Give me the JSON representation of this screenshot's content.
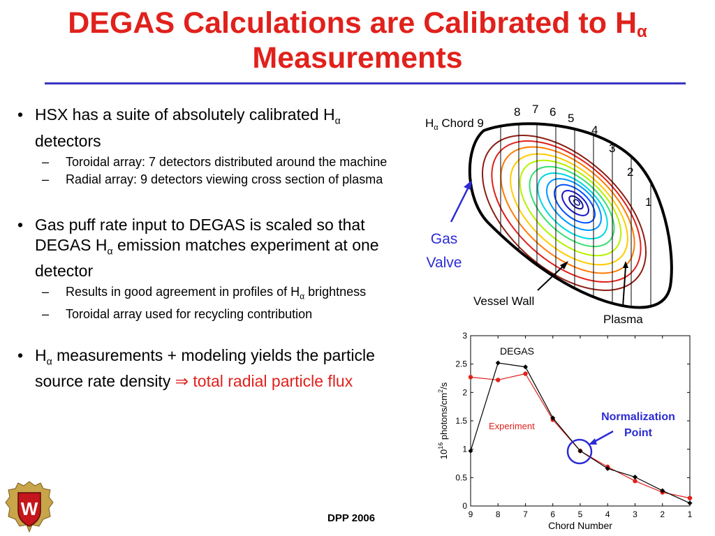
{
  "slide": {
    "title_line1": "DEGAS Calculations are Calibrated to H",
    "title_sub": "α",
    "title_line2": "Measurements",
    "footer": "DPP 2006"
  },
  "bullets": [
    {
      "pre": "HSX has a suite of absolutely calibrated H",
      "sub": "α",
      "post": " detectors",
      "subitems": [
        "Toroidal array: 7 detectors distributed around the machine",
        "Radial array: 9 detectors viewing cross section of plasma"
      ]
    },
    {
      "pre": "Gas puff rate input to DEGAS is scaled so that DEGAS  H",
      "sub": "α",
      "post": " emission matches experiment at one detector",
      "subitems_rich": [
        {
          "pre": "Results in good agreement in profiles of H",
          "sub": "α",
          "post": " brightness"
        }
      ],
      "subitems": [
        "Toroidal array used for recycling contribution"
      ]
    },
    {
      "pre": "H",
      "sub": "α",
      "post": " measurements + modeling yields the particle source rate density ",
      "arrow": "⇒",
      "red": " total radial particle flux"
    }
  ],
  "diagram": {
    "chord_label_pre": "H",
    "chord_label_sub": "α",
    "chord_label_post": " Chord 9",
    "chord_numbers": [
      "8",
      "7",
      "6",
      "5",
      "4",
      "3",
      "2",
      "1"
    ],
    "gas_valve_line1": "Gas",
    "gas_valve_line2": "Valve",
    "vessel_wall": "Vessel Wall",
    "plasma": "Plasma"
  },
  "chart_data": {
    "type": "line",
    "x": [
      9,
      8,
      7,
      6,
      5,
      4,
      3,
      2,
      1
    ],
    "x_ticks": [
      "9",
      "8",
      "7",
      "6",
      "5",
      "4",
      "3",
      "2",
      "1"
    ],
    "y_ticks": [
      "0",
      "0.5",
      "1",
      "1.5",
      "2",
      "2.5",
      "3"
    ],
    "xlabel": "Chord Number",
    "ylabel": "10^16 photons/cm^2/s",
    "ylim": [
      0,
      3
    ],
    "series": [
      {
        "name": "DEGAS",
        "color": "#000000",
        "values": [
          0.97,
          2.52,
          2.45,
          1.55,
          0.97,
          0.66,
          0.51,
          0.27,
          0.05
        ]
      },
      {
        "name": "Experiment",
        "color": "#e0211c",
        "values": [
          2.27,
          2.22,
          2.33,
          1.52,
          0.97,
          0.69,
          0.44,
          0.24,
          0.14
        ]
      }
    ],
    "annotation_line1": "Normalization",
    "annotation_line2": "Point",
    "annotation_color": "#2b2bd6"
  }
}
